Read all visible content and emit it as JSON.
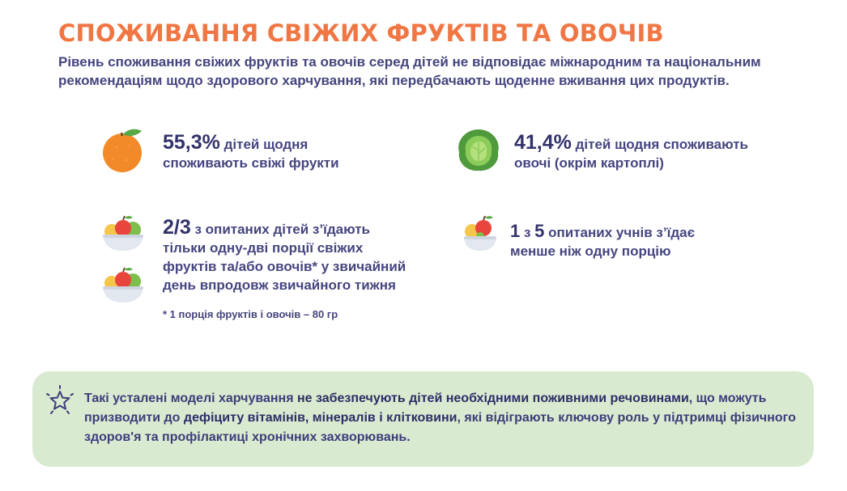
{
  "header": {
    "title": "СПОЖИВАННЯ СВІЖИХ ФРУКТІВ ТА ОВОЧІВ",
    "subtitle": "Рівень споживання свіжих фруктів та овочів серед дітей не відповідає міжнародним та національним рекомендаціям щодо здорового харчування, які передбачають щоденне вживання цих продуктів."
  },
  "stats": {
    "fruits": {
      "value": "55,3%",
      "text_line1": " дітей щодня",
      "text_line2": "споживають свіжі фрукти",
      "icon": "orange-icon"
    },
    "vegetables": {
      "value": "41,4%",
      "text_line1": " дітей щодня споживають",
      "text_line2": "овочі (окрім картоплі)",
      "icon": "cabbage-icon"
    },
    "portions": {
      "value": "2/3",
      "text_line1": " з опитаних дітей з’їдають",
      "text_line2": "тільки одну-дві порції свіжих",
      "text_line3": "фруктів та/або овочів* у звичайний",
      "text_line4": "день впродовж звичайного тижня",
      "icon": "fruit-bowl-icon"
    },
    "students": {
      "value_a": "1",
      "mid": " з ",
      "value_b": "5",
      "text_line1": " опитаних учнів з’їдає",
      "text_line2": "менше ніж одну порцію",
      "icon": "fruit-bowl-icon"
    }
  },
  "note": "* 1 порція фруктів і овочів – 80 гр",
  "banner": {
    "icon": "star-icon",
    "part1": "Такі усталені моделі харчування ",
    "part2": "не забезпечують дітей необхідними поживними речовинами",
    "part3": ", що можуть призводити до ",
    "part4": "дефіциту вітамінів, мінералів і клітковини",
    "part5": ", які відіграють ключову роль у підтримці фізичного здоров'я та профілактиці хронічних захворювань."
  },
  "colors": {
    "accent": "#f07744",
    "text": "#45457f",
    "banner_bg": "#d8ebd0"
  }
}
